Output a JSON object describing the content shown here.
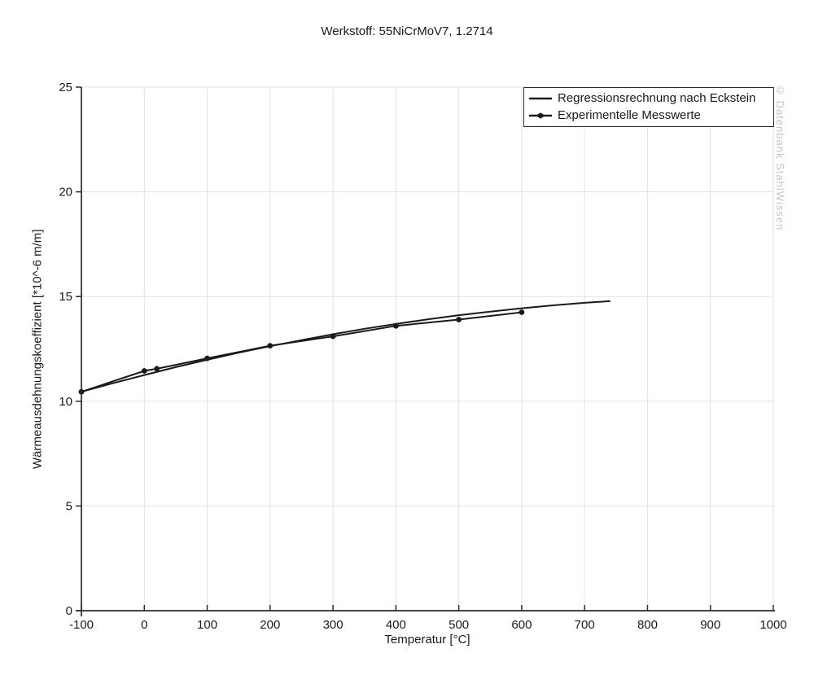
{
  "watermark": "© Datenbank StahlWissen",
  "colors": {
    "series": "#1a1a1a",
    "grid": "#e2e2e2",
    "axis": "#2b2b2b",
    "tick_label": "#1a1a1a",
    "watermark": "#c6c6c6",
    "legend_border": "#2b2b2b",
    "background": "#ffffff"
  },
  "chart_data": {
    "type": "line",
    "title": "Werkstoff: 55NiCrMoV7, 1.2714",
    "xlabel": "Temperatur [°C]",
    "ylabel": "Wärmeausdehnungskoeffizient [*10^-6 m/m]",
    "xlim": [
      -100,
      1000
    ],
    "ylim": [
      0,
      25
    ],
    "xticks": [
      -100,
      0,
      100,
      200,
      300,
      400,
      500,
      600,
      700,
      800,
      900,
      1000
    ],
    "yticks": [
      0,
      5,
      10,
      15,
      20,
      25
    ],
    "grid": true,
    "legend_position": "top-right",
    "series": [
      {
        "name": "Regressionsrechnung nach Eckstein",
        "marker": "none",
        "line_width": 2,
        "x": [
          -100,
          -50,
          0,
          50,
          100,
          150,
          200,
          250,
          300,
          350,
          400,
          450,
          500,
          550,
          600,
          650,
          700,
          740
        ],
        "y": [
          10.45,
          10.86,
          11.25,
          11.63,
          11.98,
          12.32,
          12.63,
          12.92,
          13.2,
          13.46,
          13.69,
          13.91,
          14.11,
          14.28,
          14.44,
          14.58,
          14.7,
          14.78
        ]
      },
      {
        "name": "Experimentelle Messwerte",
        "marker": "dot",
        "line_width": 2,
        "x": [
          -100,
          0,
          20,
          100,
          200,
          300,
          400,
          500,
          600
        ],
        "y": [
          10.45,
          11.45,
          11.55,
          12.05,
          12.65,
          13.1,
          13.6,
          13.9,
          14.25
        ]
      }
    ]
  }
}
